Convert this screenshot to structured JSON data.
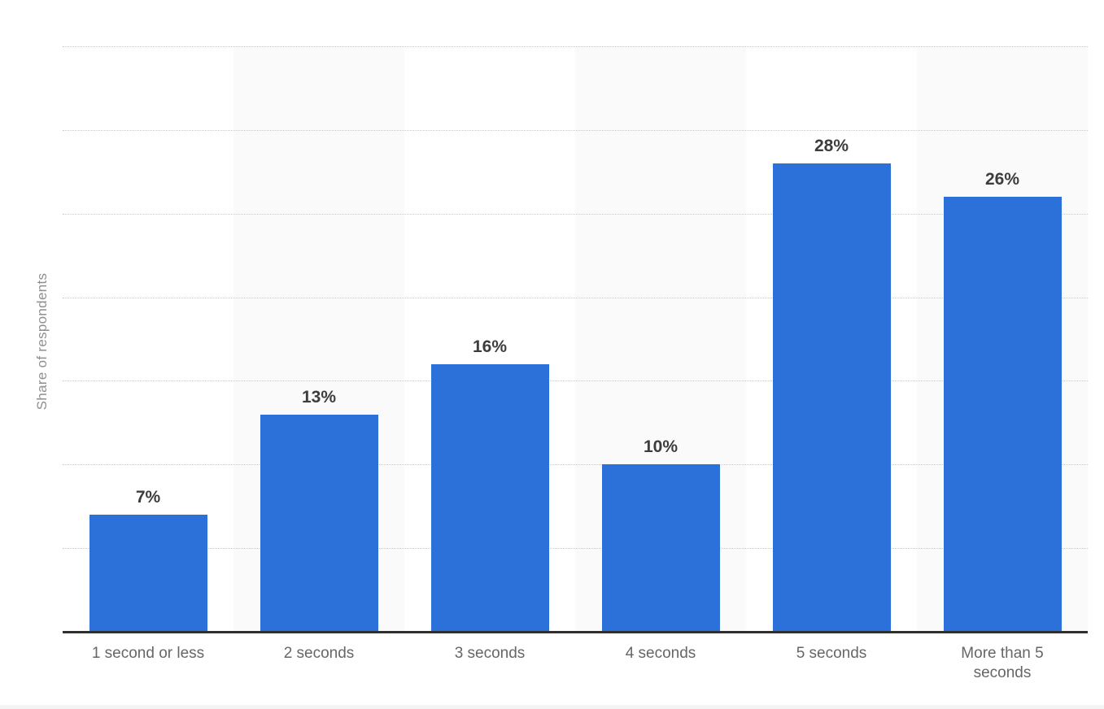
{
  "chart_data": {
    "type": "bar",
    "title": "",
    "categories": [
      "1 second or less",
      "2 seconds",
      "3 seconds",
      "4 seconds",
      "5 seconds",
      "More than 5 seconds"
    ],
    "values": [
      7,
      13,
      16,
      10,
      28,
      26
    ],
    "data_labels": [
      "7%",
      "13%",
      "16%",
      "10%",
      "28%",
      "26%"
    ],
    "xlabel": "",
    "ylabel": "Share of respondents",
    "ylim": [
      0,
      35
    ],
    "grid_step": 5,
    "grid_style": "dotted horizontal, no y tick labels",
    "legend_position": "none",
    "bar_color": "#2c70d9",
    "column_band_color": "#fafafa",
    "gridline_color": "#c8c8c8",
    "axis_line_color": "#303030",
    "value_label_color": "#3d3d3d",
    "tick_label_color": "#666666",
    "ylabel_color": "#8f8f8f",
    "background_color": "#ffffff"
  }
}
